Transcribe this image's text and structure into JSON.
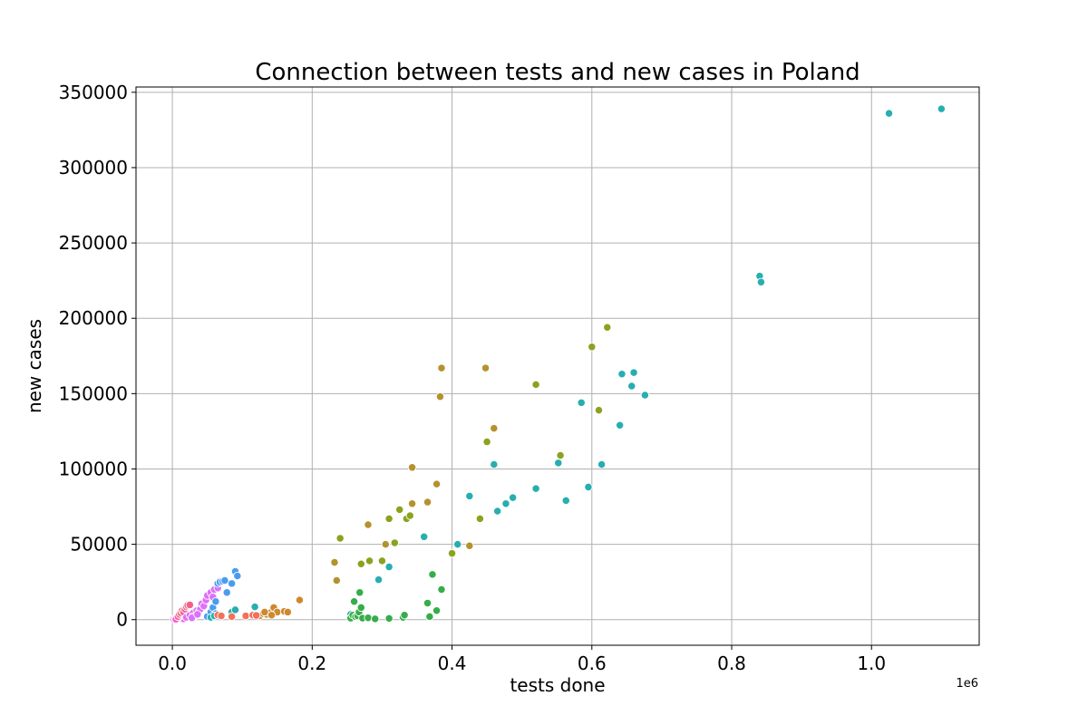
{
  "chart_data": {
    "type": "scatter",
    "title": "Connection between tests and new cases in Poland",
    "xlabel": "tests done",
    "ylabel": "new cases",
    "x_offset_label": "1e6",
    "xlim": [
      -52000,
      1154000
    ],
    "ylim": [
      -17000,
      353500
    ],
    "x_ticks": [
      0,
      200000,
      400000,
      600000,
      800000,
      1000000
    ],
    "x_tick_labels": [
      "0.0",
      "0.2",
      "0.4",
      "0.6",
      "0.8",
      "1.0"
    ],
    "y_ticks": [
      0,
      50000,
      100000,
      150000,
      200000,
      250000,
      300000,
      350000
    ],
    "y_tick_labels": [
      "0",
      "50000",
      "100000",
      "150000",
      "200000",
      "250000",
      "300000",
      "350000"
    ],
    "grid": true,
    "legend": "none",
    "colors": {
      "pink": "#f561dd",
      "magenta": "#dc71fa",
      "blue": "#4b9cf0",
      "teal": "#27aeb0",
      "green": "#37ad4a",
      "olive": "#8aa31f",
      "gold": "#b4922e",
      "orange": "#ce892f",
      "red": "#f27159",
      "rose": "#f0608a"
    },
    "series": [
      {
        "color_key": "pink",
        "points": [
          [
            2000,
            400
          ],
          [
            4000,
            700
          ],
          [
            6000,
            1000
          ],
          [
            8000,
            600
          ],
          [
            10000,
            1200
          ],
          [
            12000,
            900
          ],
          [
            14000,
            300
          ],
          [
            16000,
            500
          ],
          [
            9000,
            1500
          ],
          [
            5000,
            200
          ]
        ]
      },
      {
        "color_key": "rose",
        "points": [
          [
            8000,
            2000
          ],
          [
            10000,
            3500
          ],
          [
            12000,
            4500
          ],
          [
            14000,
            6000
          ],
          [
            16000,
            5000
          ],
          [
            18000,
            7000
          ],
          [
            20000,
            8500
          ],
          [
            22000,
            9500
          ],
          [
            25000,
            9800
          ]
        ]
      },
      {
        "color_key": "magenta",
        "points": [
          [
            20000,
            1500
          ],
          [
            25000,
            3000
          ],
          [
            30000,
            4500
          ],
          [
            33000,
            2500
          ],
          [
            35000,
            6000
          ],
          [
            38000,
            5000
          ],
          [
            40000,
            7000
          ],
          [
            42000,
            10500
          ],
          [
            45000,
            9000
          ],
          [
            48000,
            13000
          ],
          [
            50000,
            16000
          ],
          [
            55000,
            18000
          ],
          [
            58000,
            15000
          ],
          [
            60000,
            20000
          ],
          [
            65000,
            21000
          ],
          [
            30000,
            2000
          ],
          [
            28000,
            1200
          ],
          [
            36000,
            3500
          ]
        ]
      },
      {
        "color_key": "blue",
        "points": [
          [
            50000,
            2000
          ],
          [
            55000,
            5000
          ],
          [
            58000,
            8000
          ],
          [
            62000,
            12000
          ],
          [
            65000,
            24000
          ],
          [
            68000,
            25000
          ],
          [
            72000,
            25500
          ],
          [
            75000,
            26000
          ],
          [
            78000,
            18000
          ],
          [
            85000,
            24000
          ],
          [
            90000,
            32000
          ],
          [
            93000,
            29000
          ],
          [
            62000,
            4000
          ],
          [
            88000,
            6000
          ]
        ]
      },
      {
        "color_key": "teal",
        "points": [
          [
            55000,
            1500
          ],
          [
            60000,
            2500
          ],
          [
            85000,
            5000
          ],
          [
            90000,
            6500
          ],
          [
            118000,
            8500
          ],
          [
            255000,
            3500
          ],
          [
            295000,
            26500
          ],
          [
            310000,
            35000
          ],
          [
            360000,
            55000
          ],
          [
            408000,
            50000
          ],
          [
            425000,
            82000
          ],
          [
            460000,
            103000
          ],
          [
            465000,
            72000
          ],
          [
            477000,
            77000
          ],
          [
            487000,
            81000
          ],
          [
            520000,
            87000
          ],
          [
            552000,
            104000
          ],
          [
            563000,
            79000
          ],
          [
            585000,
            144000
          ],
          [
            595000,
            88000
          ],
          [
            614000,
            103000
          ],
          [
            640000,
            129000
          ],
          [
            643000,
            163000
          ],
          [
            657000,
            155000
          ],
          [
            660000,
            164000
          ],
          [
            676000,
            149000
          ],
          [
            840000,
            228000
          ],
          [
            842000,
            224000
          ],
          [
            1025000,
            336000
          ],
          [
            1100000,
            339000
          ]
        ]
      },
      {
        "color_key": "green",
        "points": [
          [
            255000,
            1000
          ],
          [
            258000,
            3000
          ],
          [
            260000,
            12000
          ],
          [
            262000,
            2000
          ],
          [
            265000,
            2500
          ],
          [
            267000,
            5000
          ],
          [
            268000,
            18000
          ],
          [
            270000,
            8000
          ],
          [
            272000,
            1000
          ],
          [
            280000,
            1200
          ],
          [
            290000,
            500
          ],
          [
            310000,
            800
          ],
          [
            330000,
            1500
          ],
          [
            332000,
            3000
          ],
          [
            365000,
            11000
          ],
          [
            368000,
            2000
          ],
          [
            372000,
            30000
          ],
          [
            378000,
            6000
          ],
          [
            385000,
            20000
          ]
        ]
      },
      {
        "color_key": "olive",
        "points": [
          [
            240000,
            54000
          ],
          [
            270000,
            37000
          ],
          [
            282000,
            39000
          ],
          [
            300000,
            39000
          ],
          [
            310000,
            67000
          ],
          [
            318000,
            51000
          ],
          [
            325000,
            73000
          ],
          [
            335000,
            67000
          ],
          [
            340000,
            69000
          ],
          [
            400000,
            44000
          ],
          [
            440000,
            67000
          ],
          [
            450000,
            118000
          ],
          [
            520000,
            156000
          ],
          [
            555000,
            109000
          ],
          [
            600000,
            181000
          ],
          [
            610000,
            139000
          ],
          [
            622000,
            194000
          ]
        ]
      },
      {
        "color_key": "gold",
        "points": [
          [
            232000,
            38000
          ],
          [
            235000,
            26000
          ],
          [
            280000,
            63000
          ],
          [
            305000,
            50000
          ],
          [
            343000,
            101000
          ],
          [
            365000,
            78000
          ],
          [
            378000,
            90000
          ],
          [
            383000,
            148000
          ],
          [
            385000,
            167000
          ],
          [
            425000,
            49000
          ],
          [
            448000,
            167000
          ],
          [
            460000,
            127000
          ],
          [
            343000,
            77000
          ]
        ]
      },
      {
        "color_key": "orange",
        "points": [
          [
            120000,
            3000
          ],
          [
            125000,
            2500
          ],
          [
            130000,
            4000
          ],
          [
            135000,
            3500
          ],
          [
            140000,
            4500
          ],
          [
            145000,
            8000
          ],
          [
            150000,
            5000
          ],
          [
            160000,
            5500
          ],
          [
            165000,
            5000
          ],
          [
            182000,
            13000
          ],
          [
            132000,
            5000
          ],
          [
            142000,
            3000
          ]
        ]
      },
      {
        "color_key": "red",
        "points": [
          [
            65000,
            3000
          ],
          [
            70000,
            2500
          ],
          [
            85000,
            2000
          ],
          [
            105000,
            2500
          ],
          [
            115000,
            3000
          ],
          [
            120000,
            2800
          ]
        ]
      }
    ]
  }
}
